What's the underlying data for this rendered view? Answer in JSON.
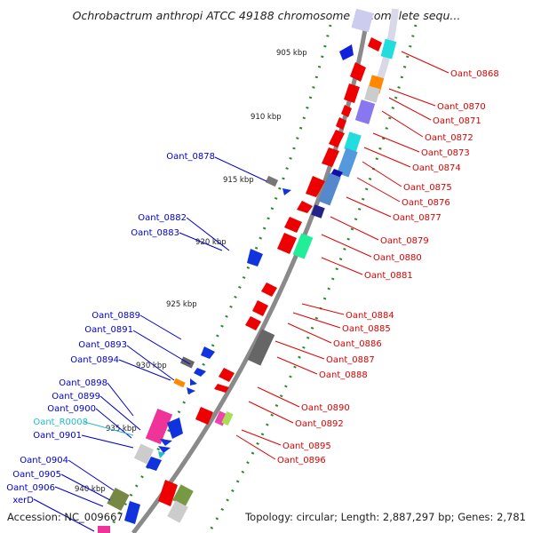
{
  "title": "Ochrobactrum anthropi ATCC 49188 chromosome 1, complete sequ...",
  "footer": {
    "accession": "Accession: NC_009667",
    "summary": "Topology: circular; Length: 2,887,297 bp; Genes: 2,781"
  },
  "colors": {
    "backbone": "#8a8a8a",
    "gc_dots": "#2a8a2a",
    "left_label": "#0000cc",
    "right_label": "#dd0000",
    "rna_label": "#22bbcc"
  },
  "kbp_ticks": [
    "905 kbp",
    "910 kbp",
    "915 kbp",
    "920 kbp",
    "925 kbp",
    "930 kbp",
    "935 kbp",
    "940 kbp"
  ],
  "left_genes": [
    {
      "name": "Oant_0878",
      "color": "blue"
    },
    {
      "name": "Oant_0882",
      "color": "blue"
    },
    {
      "name": "Oant_0883",
      "color": "blue"
    },
    {
      "name": "Oant_0889",
      "color": "blue"
    },
    {
      "name": "Oant_0891",
      "color": "blue"
    },
    {
      "name": "Oant_0893",
      "color": "blue"
    },
    {
      "name": "Oant_0894",
      "color": "blue"
    },
    {
      "name": "Oant_0898",
      "color": "blue"
    },
    {
      "name": "Oant_0899",
      "color": "blue"
    },
    {
      "name": "Oant_0900",
      "color": "blue"
    },
    {
      "name": "Oant_R0008",
      "color": "cyan"
    },
    {
      "name": "Oant_0901",
      "color": "blue"
    },
    {
      "name": "Oant_0904",
      "color": "blue"
    },
    {
      "name": "Oant_0905",
      "color": "blue"
    },
    {
      "name": "Oant_0906",
      "color": "blue"
    },
    {
      "name": "xerD",
      "color": "blue"
    }
  ],
  "right_genes": [
    "Oant_0868",
    "Oant_0870",
    "Oant_0871",
    "Oant_0872",
    "Oant_0873",
    "Oant_0874",
    "Oant_0875",
    "Oant_0876",
    "Oant_0877",
    "Oant_0879",
    "Oant_0880",
    "Oant_0881",
    "Oant_0884",
    "Oant_0885",
    "Oant_0886",
    "Oant_0887",
    "Oant_0888",
    "Oant_0890",
    "Oant_0892",
    "Oant_0895",
    "Oant_0896"
  ]
}
